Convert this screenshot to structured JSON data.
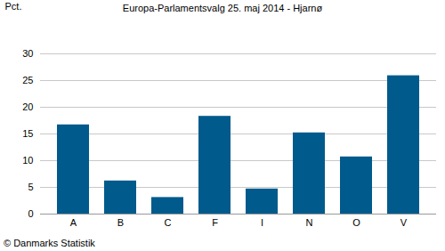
{
  "chart_data": {
    "type": "bar",
    "title": "Europa-Parlamentsvalg 25. maj 2014 - Hjarnø",
    "y_label": "Pct.",
    "caption": "© Danmarks Statistik",
    "categories": [
      "A",
      "B",
      "C",
      "F",
      "I",
      "N",
      "O",
      "V"
    ],
    "values": [
      16.7,
      6.2,
      3.1,
      18.3,
      4.7,
      15.2,
      10.7,
      25.9
    ],
    "color": "#005a8c",
    "ylim": [
      0,
      30
    ],
    "yticks": [
      0,
      5,
      10,
      15,
      20,
      25,
      30
    ],
    "grid": true
  }
}
